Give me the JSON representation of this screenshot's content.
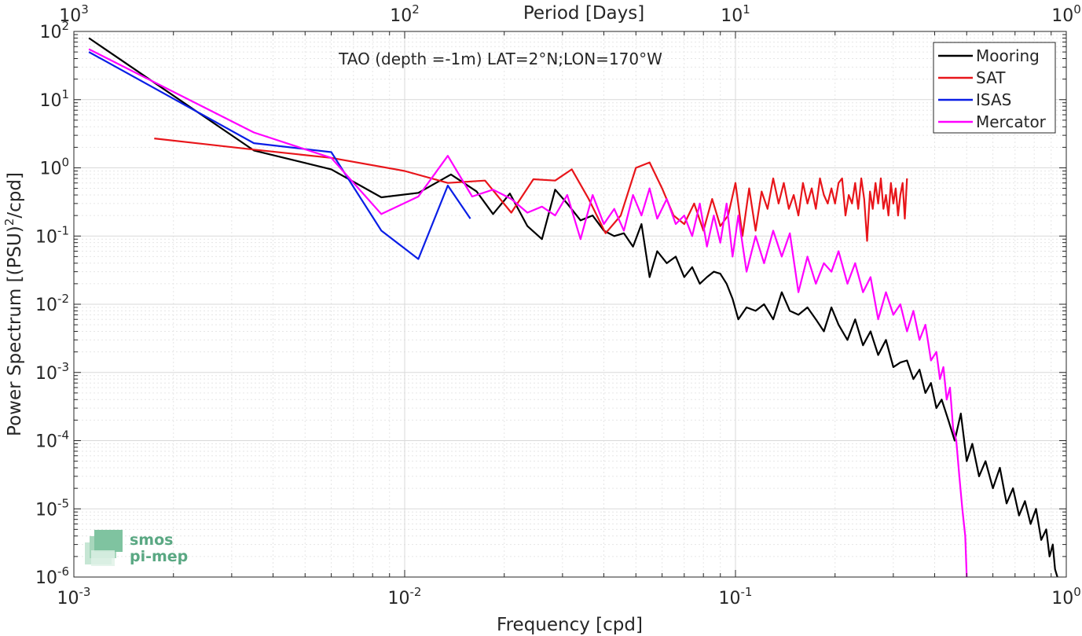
{
  "chart_data": {
    "type": "line",
    "annotation": "TAO (depth =-1m) LAT=2°N;LON=170°W",
    "xlabel": "Frequency [cpd]",
    "ylabel": "Power Spectrum [(PSU)",
    "ylabel_sup": "2",
    "ylabel_tail": "/cpd]",
    "top_xlabel": "Period [Days]",
    "xscale": "log",
    "yscale": "log",
    "xlim": [
      0.001,
      1
    ],
    "ylim": [
      1e-06,
      100
    ],
    "grid": true,
    "legend_position": "top-right",
    "x_ticks": [
      {
        "base": "10",
        "exp": "-3",
        "value": 0.001
      },
      {
        "base": "10",
        "exp": "-2",
        "value": 0.01
      },
      {
        "base": "10",
        "exp": "-1",
        "value": 0.1
      },
      {
        "base": "10",
        "exp": "0",
        "value": 1
      }
    ],
    "top_ticks": [
      {
        "base": "10",
        "exp": "3",
        "value": 0.001
      },
      {
        "base": "10",
        "exp": "2",
        "value": 0.01
      },
      {
        "base": "10",
        "exp": "1",
        "value": 0.1
      },
      {
        "base": "10",
        "exp": "0",
        "value": 1
      }
    ],
    "y_ticks": [
      {
        "base": "10",
        "exp": "2",
        "value": 100
      },
      {
        "base": "10",
        "exp": "1",
        "value": 10
      },
      {
        "base": "10",
        "exp": "0",
        "value": 1
      },
      {
        "base": "10",
        "exp": "-1",
        "value": 0.1
      },
      {
        "base": "10",
        "exp": "-2",
        "value": 0.01
      },
      {
        "base": "10",
        "exp": "-3",
        "value": 0.001
      },
      {
        "base": "10",
        "exp": "-4",
        "value": 0.0001
      },
      {
        "base": "10",
        "exp": "-5",
        "value": 1e-05
      },
      {
        "base": "10",
        "exp": "-6",
        "value": 1e-06
      }
    ],
    "series": [
      {
        "name": "Mooring",
        "color": "#000000",
        "x": [
          0.00111,
          0.0035,
          0.006,
          0.0085,
          0.011,
          0.0138,
          0.0165,
          0.0185,
          0.0208,
          0.0235,
          0.026,
          0.0285,
          0.031,
          0.034,
          0.037,
          0.04,
          0.043,
          0.046,
          0.049,
          0.052,
          0.055,
          0.058,
          0.062,
          0.066,
          0.07,
          0.074,
          0.078,
          0.082,
          0.086,
          0.09,
          0.094,
          0.098,
          0.102,
          0.108,
          0.115,
          0.122,
          0.13,
          0.138,
          0.146,
          0.155,
          0.165,
          0.175,
          0.185,
          0.195,
          0.205,
          0.218,
          0.23,
          0.243,
          0.256,
          0.27,
          0.285,
          0.3,
          0.315,
          0.33,
          0.345,
          0.36,
          0.375,
          0.39,
          0.405,
          0.42,
          0.44,
          0.46,
          0.48,
          0.5,
          0.52,
          0.545,
          0.57,
          0.6,
          0.63,
          0.66,
          0.69,
          0.72,
          0.75,
          0.78,
          0.81,
          0.84,
          0.87,
          0.89,
          0.91,
          0.925,
          0.94
        ],
        "y": [
          80,
          1.8,
          0.95,
          0.37,
          0.43,
          0.8,
          0.45,
          0.21,
          0.42,
          0.14,
          0.09,
          0.48,
          0.3,
          0.17,
          0.2,
          0.12,
          0.1,
          0.11,
          0.07,
          0.15,
          0.025,
          0.06,
          0.04,
          0.05,
          0.025,
          0.035,
          0.02,
          0.025,
          0.03,
          0.028,
          0.02,
          0.012,
          0.006,
          0.009,
          0.008,
          0.01,
          0.006,
          0.015,
          0.008,
          0.007,
          0.009,
          0.006,
          0.004,
          0.009,
          0.005,
          0.003,
          0.006,
          0.0025,
          0.004,
          0.0018,
          0.003,
          0.0012,
          0.0014,
          0.0015,
          0.0008,
          0.0011,
          0.0005,
          0.0007,
          0.0003,
          0.0004,
          0.0002,
          0.0001,
          0.00025,
          5e-05,
          9e-05,
          3e-05,
          5e-05,
          2e-05,
          4e-05,
          1.2e-05,
          2e-05,
          8e-06,
          1.3e-05,
          6e-06,
          1e-05,
          3.5e-06,
          5e-06,
          2e-06,
          3e-06,
          1.3e-06,
          1e-06
        ]
      },
      {
        "name": "SAT",
        "color": "#e8151a",
        "x": [
          0.00175,
          0.0035,
          0.006,
          0.01,
          0.0135,
          0.0175,
          0.021,
          0.0245,
          0.0285,
          0.032,
          0.036,
          0.0405,
          0.045,
          0.05,
          0.055,
          0.06,
          0.065,
          0.07,
          0.075,
          0.08,
          0.085,
          0.09,
          0.095,
          0.1,
          0.105,
          0.11,
          0.115,
          0.12,
          0.125,
          0.13,
          0.135,
          0.14,
          0.145,
          0.15,
          0.155,
          0.16,
          0.165,
          0.17,
          0.175,
          0.18,
          0.185,
          0.19,
          0.195,
          0.2,
          0.205,
          0.21,
          0.215,
          0.22,
          0.225,
          0.23,
          0.235,
          0.24,
          0.245,
          0.25,
          0.255,
          0.26,
          0.265,
          0.27,
          0.275,
          0.28,
          0.285,
          0.29,
          0.295,
          0.3,
          0.305,
          0.31,
          0.315,
          0.32,
          0.325,
          0.33
        ],
        "y": [
          2.7,
          1.85,
          1.4,
          0.9,
          0.6,
          0.65,
          0.22,
          0.68,
          0.65,
          0.95,
          0.35,
          0.11,
          0.2,
          1.0,
          1.2,
          0.5,
          0.2,
          0.15,
          0.3,
          0.12,
          0.35,
          0.14,
          0.2,
          0.6,
          0.1,
          0.5,
          0.12,
          0.45,
          0.25,
          0.7,
          0.3,
          0.6,
          0.25,
          0.4,
          0.2,
          0.6,
          0.3,
          0.5,
          0.25,
          0.7,
          0.4,
          0.3,
          0.5,
          0.3,
          0.6,
          0.7,
          0.2,
          0.4,
          0.3,
          0.6,
          0.25,
          0.7,
          0.35,
          0.085,
          0.45,
          0.25,
          0.6,
          0.3,
          0.7,
          0.25,
          0.4,
          0.2,
          0.6,
          0.3,
          0.5,
          0.2,
          0.4,
          0.6,
          0.18,
          0.7
        ]
      },
      {
        "name": "ISAS",
        "color": "#0a1ee6",
        "x": [
          0.00111,
          0.0035,
          0.006,
          0.0085,
          0.011,
          0.0135,
          0.0158
        ],
        "y": [
          50,
          2.3,
          1.7,
          0.12,
          0.046,
          0.55,
          0.18
        ]
      },
      {
        "name": "Mercator",
        "color": "#ff00ff",
        "x": [
          0.00111,
          0.0035,
          0.006,
          0.0085,
          0.011,
          0.0135,
          0.016,
          0.0185,
          0.021,
          0.0235,
          0.026,
          0.0285,
          0.031,
          0.034,
          0.037,
          0.04,
          0.043,
          0.046,
          0.049,
          0.052,
          0.055,
          0.058,
          0.062,
          0.066,
          0.07,
          0.074,
          0.078,
          0.082,
          0.086,
          0.09,
          0.094,
          0.098,
          0.102,
          0.108,
          0.115,
          0.122,
          0.13,
          0.138,
          0.146,
          0.155,
          0.165,
          0.175,
          0.185,
          0.195,
          0.205,
          0.218,
          0.23,
          0.243,
          0.256,
          0.27,
          0.285,
          0.3,
          0.315,
          0.33,
          0.345,
          0.36,
          0.375,
          0.39,
          0.405,
          0.415,
          0.425,
          0.435,
          0.445,
          0.455,
          0.465,
          0.475,
          0.485,
          0.495,
          0.5
        ],
        "y": [
          55,
          3.3,
          1.4,
          0.21,
          0.38,
          1.5,
          0.38,
          0.48,
          0.35,
          0.22,
          0.27,
          0.2,
          0.4,
          0.09,
          0.4,
          0.15,
          0.25,
          0.12,
          0.4,
          0.2,
          0.5,
          0.18,
          0.35,
          0.15,
          0.2,
          0.1,
          0.3,
          0.07,
          0.2,
          0.08,
          0.3,
          0.05,
          0.2,
          0.03,
          0.1,
          0.04,
          0.12,
          0.05,
          0.11,
          0.015,
          0.05,
          0.02,
          0.04,
          0.03,
          0.06,
          0.02,
          0.04,
          0.015,
          0.025,
          0.006,
          0.015,
          0.007,
          0.01,
          0.004,
          0.008,
          0.003,
          0.005,
          0.0015,
          0.002,
          0.0008,
          0.0012,
          0.0004,
          0.0006,
          0.00015,
          0.0001,
          3e-05,
          1e-05,
          4e-06,
          1e-06
        ]
      }
    ]
  },
  "logo": {
    "line1": "smos",
    "line2": "pi-mep",
    "color": "#5aa883"
  }
}
